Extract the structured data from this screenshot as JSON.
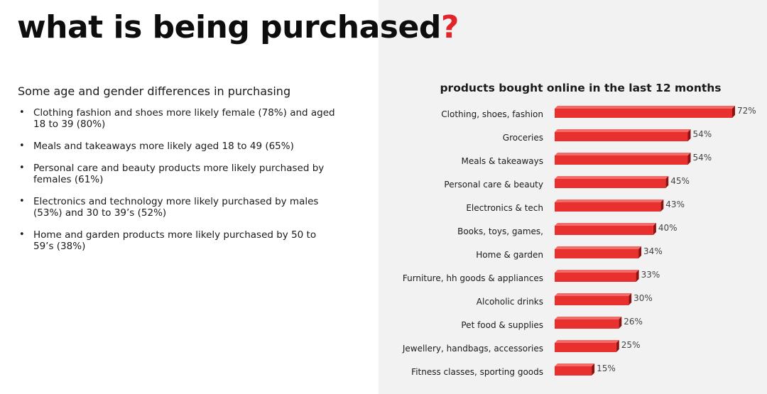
{
  "slide": {
    "title_main": "what is being purchased",
    "title_mark": "?",
    "subtitle": "Some age and gender differences in purchasing",
    "bullets": [
      "Clothing fashion and shoes more likely female (78%) and aged 18 to 39 (80%)",
      "Meals and takeaways more likely aged 18 to 49 (65%)",
      "Personal care and beauty products more likely purchased by females (61%)",
      "Electronics and technology more likely purchased by males (53%) and 30 to 39’s (52%)",
      "Home and garden products more likely purchased by 50 to 59’s (38%)"
    ],
    "bullet_glyph": "•"
  },
  "colors": {
    "accent": "#e0262a",
    "bar_face": "#e8302e",
    "bar_side": "#8e1414",
    "bar_top": "#f26b66",
    "panel_bg": "#f2f2f2"
  },
  "chart_data": {
    "type": "bar",
    "orientation": "horizontal",
    "title": "products bought online in the last 12 months",
    "categories": [
      "Clothing, shoes, fashion",
      "Groceries",
      "Meals & takeaways",
      "Personal care & beauty",
      "Electronics & tech",
      "Books, toys, games,",
      "Home & garden",
      "Furniture, hh goods & appliances",
      "Alcoholic drinks",
      "Pet food & supplies",
      "Jewellery, handbags, accessories",
      "Fitness classes, sporting goods"
    ],
    "values": [
      72,
      54,
      54,
      45,
      43,
      40,
      34,
      33,
      30,
      26,
      25,
      15
    ],
    "value_suffix": "%",
    "xlim": [
      0,
      72
    ],
    "grid": false,
    "legend": "none",
    "style": "3d"
  }
}
